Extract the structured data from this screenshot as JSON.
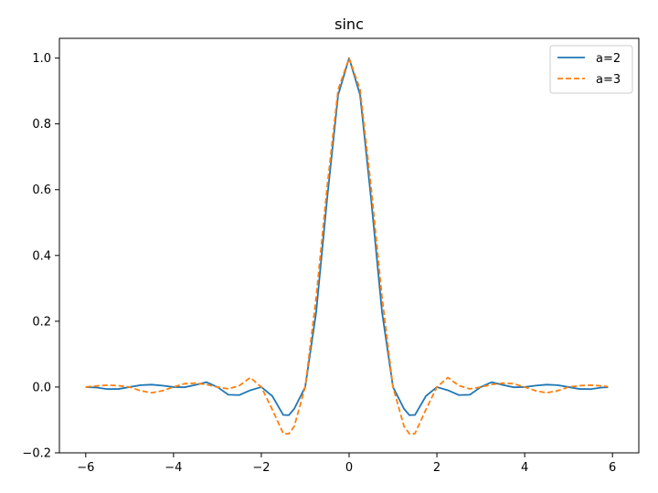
{
  "chart_data": {
    "type": "line",
    "title": "sinc",
    "xlabel": "",
    "ylabel": "",
    "xlim": [
      -6.6,
      6.6
    ],
    "ylim": [
      -0.2,
      1.06
    ],
    "x_ticks": [
      -6,
      -4,
      -2,
      0,
      2,
      4,
      6
    ],
    "x_tick_labels": [
      "−6",
      "−4",
      "−2",
      "0",
      "2",
      "4",
      "6"
    ],
    "y_ticks": [
      -0.2,
      0.0,
      0.2,
      0.4,
      0.6,
      0.8,
      1.0
    ],
    "y_tick_labels": [
      "−0.2",
      "0.0",
      "0.2",
      "0.4",
      "0.6",
      "0.8",
      "1.0"
    ],
    "grid": false,
    "legend_position": "top-right",
    "series": [
      {
        "name": "a=2",
        "color": "#1f77b4",
        "style": "solid",
        "x": [
          -6.0,
          -5.75,
          -5.5,
          -5.25,
          -5.0,
          -4.75,
          -4.5,
          -4.25,
          -4.0,
          -3.75,
          -3.5,
          -3.25,
          -3.0,
          -2.75,
          -2.5,
          -2.25,
          -2.0,
          -1.75,
          -1.5,
          -1.375,
          -1.25,
          -1.0,
          -0.75,
          -0.5,
          -0.25,
          0.0,
          0.25,
          0.5,
          0.75,
          1.0,
          1.25,
          1.375,
          1.5,
          1.75,
          2.0,
          2.25,
          2.5,
          2.75,
          3.0,
          3.25,
          3.5,
          3.75,
          4.0,
          4.25,
          4.5,
          4.75,
          5.0,
          5.25,
          5.5,
          5.75,
          5.9
        ],
        "y": [
          0.0,
          -0.0016,
          -0.0063,
          -0.0059,
          0.0,
          0.0058,
          0.0073,
          0.0044,
          0.0,
          -0.0007,
          0.0064,
          0.0149,
          0.0,
          -0.0234,
          -0.0244,
          -0.0098,
          0.0,
          -0.0273,
          -0.0849,
          -0.0856,
          -0.0661,
          0.0,
          0.2279,
          0.573,
          0.8878,
          1.0,
          0.8878,
          0.573,
          0.2279,
          0.0,
          -0.0661,
          -0.0856,
          -0.0849,
          -0.0273,
          0.0,
          -0.0098,
          -0.0244,
          -0.0234,
          0.0,
          0.0149,
          0.0064,
          -0.0007,
          0.0,
          0.0044,
          0.0073,
          0.0058,
          0.0,
          -0.0059,
          -0.0063,
          -0.0016,
          -0.0003
        ]
      },
      {
        "name": "a=3",
        "color": "#ff7f0e",
        "style": "dashed",
        "x": [
          -6.0,
          -5.75,
          -5.5,
          -5.25,
          -5.0,
          -4.75,
          -4.5,
          -4.25,
          -4.0,
          -3.75,
          -3.5,
          -3.25,
          -3.0,
          -2.75,
          -2.5,
          -2.25,
          -2.0,
          -1.75,
          -1.5,
          -1.375,
          -1.25,
          -1.0,
          -0.75,
          -0.5,
          -0.25,
          0.0,
          0.25,
          0.5,
          0.75,
          1.0,
          1.25,
          1.375,
          1.5,
          1.75,
          2.0,
          2.25,
          2.5,
          2.75,
          3.0,
          3.25,
          3.5,
          3.75,
          4.0,
          4.25,
          4.5,
          4.75,
          5.0,
          5.25,
          5.5,
          5.75,
          5.9
        ],
        "y": [
          0.0,
          0.0034,
          0.0058,
          0.0041,
          0.0,
          -0.0113,
          -0.0174,
          -0.0113,
          0.0,
          0.0101,
          0.0118,
          0.0078,
          0.0,
          -0.0056,
          0.0042,
          0.0288,
          0.0,
          -0.0686,
          -0.1415,
          -0.1425,
          -0.1191,
          0.0,
          0.2728,
          0.6085,
          0.9042,
          1.0,
          0.9042,
          0.6085,
          0.2728,
          0.0,
          -0.1191,
          -0.1425,
          -0.1415,
          -0.0686,
          0.0,
          0.0288,
          0.0042,
          -0.0056,
          0.0,
          0.0078,
          0.0118,
          0.0101,
          0.0,
          -0.0113,
          -0.0174,
          -0.0113,
          0.0,
          0.0041,
          0.0058,
          0.0034,
          0.0012
        ]
      }
    ]
  }
}
